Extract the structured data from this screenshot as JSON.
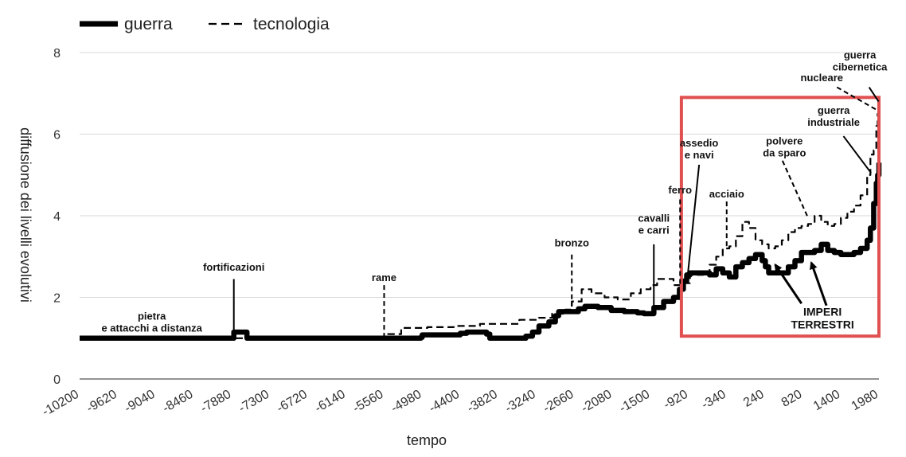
{
  "chart_data": {
    "type": "line",
    "xlabel": "tempo",
    "ylabel": "diffusione dei livelli evolutivi",
    "xlim": [
      -10200,
      1980
    ],
    "ylim": [
      0,
      8
    ],
    "x_ticks": [
      -10200,
      -9620,
      -9040,
      -8460,
      -7880,
      -7300,
      -6720,
      -6140,
      -5560,
      -4980,
      -4400,
      -3820,
      -3240,
      -2660,
      -2080,
      -1500,
      -920,
      -340,
      240,
      820,
      1400,
      1980
    ],
    "y_ticks": [
      0,
      2,
      4,
      6,
      8
    ],
    "grid": "horizontal",
    "legend": "top-left",
    "series": [
      {
        "name": "guerra",
        "style": "solid",
        "color": "#000000",
        "points": [
          [
            -10200,
            1.0
          ],
          [
            -7950,
            1.0
          ],
          [
            -7850,
            1.15
          ],
          [
            -7700,
            1.15
          ],
          [
            -7650,
            1.0
          ],
          [
            -5560,
            1.0
          ],
          [
            -5400,
            1.0
          ],
          [
            -5200,
            1.0
          ],
          [
            -5000,
            1.02
          ],
          [
            -4980,
            1.08
          ],
          [
            -4600,
            1.08
          ],
          [
            -4400,
            1.12
          ],
          [
            -4300,
            1.15
          ],
          [
            -4100,
            1.15
          ],
          [
            -4000,
            1.1
          ],
          [
            -3950,
            1.0
          ],
          [
            -3500,
            1.0
          ],
          [
            -3400,
            1.05
          ],
          [
            -3300,
            1.15
          ],
          [
            -3200,
            1.3
          ],
          [
            -3050,
            1.4
          ],
          [
            -2950,
            1.55
          ],
          [
            -2900,
            1.65
          ],
          [
            -2700,
            1.65
          ],
          [
            -2600,
            1.72
          ],
          [
            -2500,
            1.78
          ],
          [
            -2300,
            1.75
          ],
          [
            -2100,
            1.68
          ],
          [
            -1900,
            1.65
          ],
          [
            -1700,
            1.62
          ],
          [
            -1600,
            1.6
          ],
          [
            -1450,
            1.75
          ],
          [
            -1300,
            1.9
          ],
          [
            -1150,
            2.0
          ],
          [
            -1060,
            2.2
          ],
          [
            -1000,
            2.4
          ],
          [
            -950,
            2.55
          ],
          [
            -900,
            2.6
          ],
          [
            -700,
            2.6
          ],
          [
            -600,
            2.55
          ],
          [
            -500,
            2.7
          ],
          [
            -400,
            2.6
          ],
          [
            -300,
            2.5
          ],
          [
            -200,
            2.75
          ],
          [
            -100,
            2.85
          ],
          [
            0,
            2.95
          ],
          [
            100,
            3.05
          ],
          [
            200,
            2.9
          ],
          [
            250,
            2.75
          ],
          [
            300,
            2.6
          ],
          [
            400,
            2.6
          ],
          [
            500,
            2.6
          ],
          [
            600,
            2.75
          ],
          [
            700,
            2.9
          ],
          [
            800,
            3.1
          ],
          [
            900,
            3.1
          ],
          [
            1000,
            3.15
          ],
          [
            1100,
            3.3
          ],
          [
            1200,
            3.15
          ],
          [
            1300,
            3.1
          ],
          [
            1400,
            3.05
          ],
          [
            1500,
            3.05
          ],
          [
            1600,
            3.1
          ],
          [
            1700,
            3.2
          ],
          [
            1800,
            3.4
          ],
          [
            1850,
            3.7
          ],
          [
            1900,
            4.3
          ],
          [
            1940,
            4.8
          ],
          [
            1960,
            5.0
          ],
          [
            1980,
            5.3
          ]
        ]
      },
      {
        "name": "tecnologia",
        "style": "dashed",
        "color": "#000000",
        "points": [
          [
            -10200,
            1.0
          ],
          [
            -5560,
            1.0
          ],
          [
            -5500,
            1.1
          ],
          [
            -5300,
            1.25
          ],
          [
            -4900,
            1.27
          ],
          [
            -4500,
            1.3
          ],
          [
            -4100,
            1.35
          ],
          [
            -3800,
            1.35
          ],
          [
            -3500,
            1.45
          ],
          [
            -3200,
            1.5
          ],
          [
            -3000,
            1.6
          ],
          [
            -2800,
            1.7
          ],
          [
            -2700,
            1.9
          ],
          [
            -2550,
            2.2
          ],
          [
            -2400,
            2.1
          ],
          [
            -2200,
            2.0
          ],
          [
            -2000,
            1.95
          ],
          [
            -1800,
            2.1
          ],
          [
            -1650,
            2.2
          ],
          [
            -1500,
            2.3
          ],
          [
            -1400,
            2.45
          ],
          [
            -1250,
            2.45
          ],
          [
            -1150,
            2.3
          ],
          [
            -1000,
            2.35
          ],
          [
            -900,
            2.55
          ],
          [
            -700,
            2.6
          ],
          [
            -600,
            2.8
          ],
          [
            -500,
            3.0
          ],
          [
            -400,
            3.2
          ],
          [
            -300,
            3.25
          ],
          [
            -200,
            3.5
          ],
          [
            -100,
            3.85
          ],
          [
            0,
            3.7
          ],
          [
            100,
            3.4
          ],
          [
            200,
            3.3
          ],
          [
            300,
            3.2
          ],
          [
            400,
            3.25
          ],
          [
            500,
            3.4
          ],
          [
            600,
            3.6
          ],
          [
            700,
            3.7
          ],
          [
            800,
            3.75
          ],
          [
            900,
            3.8
          ],
          [
            1000,
            4.0
          ],
          [
            1100,
            3.85
          ],
          [
            1200,
            3.75
          ],
          [
            1300,
            3.8
          ],
          [
            1400,
            3.95
          ],
          [
            1500,
            4.1
          ],
          [
            1600,
            4.25
          ],
          [
            1700,
            4.5
          ],
          [
            1800,
            5.0
          ],
          [
            1850,
            5.5
          ],
          [
            1900,
            5.6
          ],
          [
            1940,
            6.2
          ],
          [
            1960,
            6.5
          ],
          [
            1980,
            6.9
          ]
        ]
      }
    ],
    "annotations": [
      {
        "text": [
          "pietra",
          "e attacchi a distanza"
        ],
        "x": -9100,
        "y": 1.45
      },
      {
        "text": [
          "fortificazioni"
        ],
        "x": -7850,
        "y": 2.65,
        "leader": [
          [
            -7850,
            2.45
          ],
          [
            -7850,
            1.2
          ]
        ]
      },
      {
        "text": [
          "rame"
        ],
        "x": -5560,
        "y": 2.4,
        "leader": [
          [
            -5560,
            2.3
          ],
          [
            -5560,
            1.05
          ]
        ],
        "dashed": true
      },
      {
        "text": [
          "bronzo"
        ],
        "x": -2700,
        "y": 3.25,
        "leader": [
          [
            -2700,
            3.05
          ],
          [
            -2700,
            1.8
          ]
        ],
        "dashed": true
      },
      {
        "text": [
          "cavalli",
          "e carri"
        ],
        "x": -1450,
        "y": 3.85,
        "leader": [
          [
            -1450,
            3.3
          ],
          [
            -1450,
            1.8
          ]
        ]
      },
      {
        "text": [
          "ferro"
        ],
        "x": -1050,
        "y": 4.55,
        "leader": [
          [
            -1050,
            4.4
          ],
          [
            -1050,
            2.3
          ]
        ],
        "dashed": true
      },
      {
        "text": [
          "assedio",
          "e navi"
        ],
        "x": -760,
        "y": 5.7,
        "leader": [
          [
            -760,
            5.25
          ],
          [
            -930,
            2.6
          ]
        ]
      },
      {
        "text": [
          "acciaio"
        ],
        "x": -340,
        "y": 4.45,
        "leader": [
          [
            -340,
            4.35
          ],
          [
            -340,
            3.2
          ]
        ],
        "dashed": true
      },
      {
        "text": [
          "polvere",
          "da sparo"
        ],
        "x": 540,
        "y": 5.75,
        "leader": [
          [
            510,
            5.35
          ],
          [
            900,
            3.95
          ]
        ],
        "dashed": true
      },
      {
        "text": [
          "guerra",
          "industriale"
        ],
        "x": 1290,
        "y": 6.5,
        "leader": [
          [
            1440,
            5.95
          ],
          [
            1860,
            5.05
          ]
        ]
      },
      {
        "text": [
          "nucleare"
        ],
        "x": 1110,
        "y": 7.3,
        "leader": [
          [
            1340,
            7.15
          ],
          [
            1940,
            6.6
          ]
        ],
        "dashed": true
      },
      {
        "text": [
          "guerra",
          "cibernetica"
        ],
        "x": 1690,
        "y": 7.85,
        "leader": [
          [
            1830,
            7.15
          ],
          [
            1975,
            6.8
          ]
        ]
      },
      {
        "text": [
          "IMPERI",
          "TERRESTRI"
        ],
        "x": 1120,
        "y": 1.55,
        "big": true,
        "arrows": [
          [
            [
              800,
              1.85
            ],
            [
              400,
              2.8
            ]
          ],
          [
            [
              1180,
              1.8
            ],
            [
              950,
              2.85
            ]
          ]
        ]
      }
    ],
    "highlight_box": {
      "x_range": [
        -1030,
        1980
      ],
      "y_range": [
        1.05,
        6.9
      ],
      "color": "#e05050"
    }
  },
  "legend": {
    "items": [
      {
        "label": "guerra",
        "style": "solid"
      },
      {
        "label": "tecnologia",
        "style": "dashed"
      }
    ]
  },
  "axes": {
    "xlabel": "tempo",
    "ylabel": "diffusione dei livelli evolutivi"
  }
}
